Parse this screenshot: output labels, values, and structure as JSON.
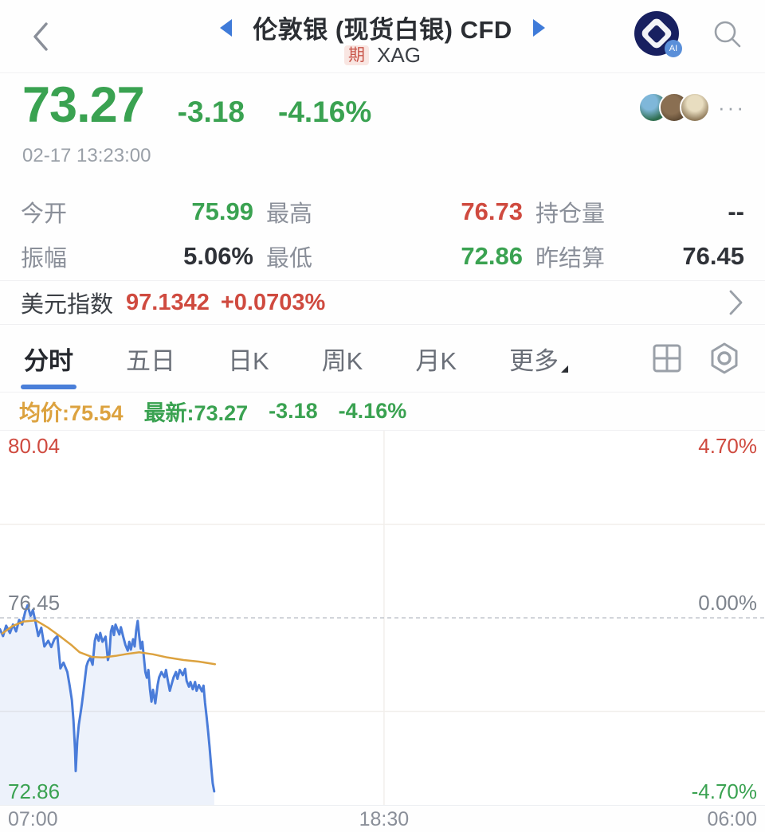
{
  "header": {
    "title": "伦敦银 (现货白银) CFD",
    "badge": "期",
    "symbol": "XAG"
  },
  "quote": {
    "price": "73.27",
    "change": "-3.18",
    "change_pct": "-4.16%",
    "timestamp": "02-17 13:23:00",
    "more": "···"
  },
  "stats": {
    "items": [
      {
        "label": "今开",
        "value": "75.99",
        "tone": "green"
      },
      {
        "label": "最高",
        "value": "76.73",
        "tone": "red"
      },
      {
        "label": "持仓量",
        "value": "--",
        "tone": "dark"
      },
      {
        "label": "振幅",
        "value": "5.06%",
        "tone": "dark"
      },
      {
        "label": "最低",
        "value": "72.86",
        "tone": "green"
      },
      {
        "label": "昨结算",
        "value": "76.45",
        "tone": "dark"
      }
    ]
  },
  "usd": {
    "label": "美元指数",
    "value": "97.1342",
    "change_pct": "+0.0703%"
  },
  "tabs": {
    "items": [
      "分时",
      "五日",
      "日K",
      "周K",
      "月K",
      "更多"
    ],
    "active_index": 0
  },
  "legend": {
    "avg": "均价:75.54",
    "latest": "最新:73.27",
    "change": "-3.18",
    "change_pct": "-4.16%"
  },
  "colors": {
    "green": "#3aa251",
    "red": "#cf4a3f",
    "orange": "#dca23f",
    "blue": "#4a7cd9",
    "accent_blue": "#3f7bd9"
  },
  "chart_data": {
    "type": "line",
    "x_labels": [
      "07:00",
      "18:30",
      "06:00"
    ],
    "y_left": [
      "80.04",
      "76.45",
      "72.86"
    ],
    "y_right": [
      "4.70%",
      "0.00%",
      "-4.70%"
    ],
    "ylim": [
      72.86,
      80.04
    ],
    "prev_close": 76.45,
    "avg_price": 75.54,
    "last_price": 73.27,
    "grid": {
      "color": "#f2efec",
      "dashed_color": "#b6bcc4",
      "h_solid_prices": [
        78.245,
        74.655
      ],
      "v_fracs": [
        0.502
      ]
    },
    "series": [
      {
        "name": "price",
        "color": "#4a7cd9",
        "fill": "rgba(74,124,217,0.10)",
        "points": [
          [
            0.0,
            76.23
          ],
          [
            0.004,
            76.1
          ],
          [
            0.008,
            76.3
          ],
          [
            0.013,
            76.16
          ],
          [
            0.017,
            76.32
          ],
          [
            0.021,
            76.19
          ],
          [
            0.025,
            76.41
          ],
          [
            0.029,
            76.32
          ],
          [
            0.033,
            76.57
          ],
          [
            0.036,
            76.69
          ],
          [
            0.04,
            76.49
          ],
          [
            0.043,
            76.6
          ],
          [
            0.047,
            76.33
          ],
          [
            0.05,
            76.1
          ],
          [
            0.054,
            76.26
          ],
          [
            0.058,
            75.9
          ],
          [
            0.063,
            76.01
          ],
          [
            0.067,
            75.89
          ],
          [
            0.071,
            76.04
          ],
          [
            0.075,
            76.1
          ],
          [
            0.079,
            75.48
          ],
          [
            0.083,
            75.59
          ],
          [
            0.088,
            75.41
          ],
          [
            0.091,
            75.15
          ],
          [
            0.094,
            74.87
          ],
          [
            0.096,
            74.48
          ],
          [
            0.098,
            73.94
          ],
          [
            0.099,
            73.51
          ],
          [
            0.101,
            74.1
          ],
          [
            0.103,
            74.4
          ],
          [
            0.105,
            74.59
          ],
          [
            0.107,
            74.79
          ],
          [
            0.109,
            75.02
          ],
          [
            0.113,
            75.52
          ],
          [
            0.115,
            75.61
          ],
          [
            0.118,
            75.68
          ],
          [
            0.121,
            75.55
          ],
          [
            0.124,
            76.01
          ],
          [
            0.126,
            76.13
          ],
          [
            0.129,
            76.01
          ],
          [
            0.131,
            76.16
          ],
          [
            0.134,
            75.99
          ],
          [
            0.138,
            76.09
          ],
          [
            0.141,
            75.64
          ],
          [
            0.143,
            75.75
          ],
          [
            0.145,
            76.19
          ],
          [
            0.147,
            76.29
          ],
          [
            0.149,
            76.12
          ],
          [
            0.151,
            76.32
          ],
          [
            0.154,
            76.21
          ],
          [
            0.156,
            76.13
          ],
          [
            0.158,
            76.27
          ],
          [
            0.161,
            76.09
          ],
          [
            0.164,
            75.93
          ],
          [
            0.167,
            75.82
          ],
          [
            0.169,
            75.99
          ],
          [
            0.171,
            75.84
          ],
          [
            0.174,
            76.04
          ],
          [
            0.176,
            75.9
          ],
          [
            0.178,
            76.21
          ],
          [
            0.18,
            76.39
          ],
          [
            0.182,
            76.1
          ],
          [
            0.184,
            75.86
          ],
          [
            0.186,
            75.99
          ],
          [
            0.19,
            75.41
          ],
          [
            0.192,
            75.3
          ],
          [
            0.194,
            75.45
          ],
          [
            0.196,
            75.08
          ],
          [
            0.198,
            74.84
          ],
          [
            0.2,
            75.07
          ],
          [
            0.203,
            74.81
          ],
          [
            0.206,
            75.16
          ],
          [
            0.208,
            75.31
          ],
          [
            0.211,
            75.41
          ],
          [
            0.215,
            75.31
          ],
          [
            0.217,
            75.45
          ],
          [
            0.219,
            75.28
          ],
          [
            0.222,
            75.05
          ],
          [
            0.225,
            75.21
          ],
          [
            0.227,
            75.31
          ],
          [
            0.23,
            75.41
          ],
          [
            0.232,
            75.28
          ],
          [
            0.235,
            75.45
          ],
          [
            0.239,
            75.35
          ],
          [
            0.242,
            75.47
          ],
          [
            0.244,
            75.24
          ],
          [
            0.247,
            75.13
          ],
          [
            0.249,
            75.22
          ],
          [
            0.252,
            75.08
          ],
          [
            0.255,
            75.22
          ],
          [
            0.257,
            75.05
          ],
          [
            0.26,
            75.16
          ],
          [
            0.264,
            75.04
          ],
          [
            0.266,
            75.15
          ],
          [
            0.268,
            74.82
          ],
          [
            0.27,
            74.56
          ],
          [
            0.272,
            74.28
          ],
          [
            0.274,
            73.97
          ],
          [
            0.276,
            73.6
          ],
          [
            0.278,
            73.28
          ],
          [
            0.28,
            73.12
          ]
        ]
      },
      {
        "name": "avg",
        "color": "#dca23f",
        "points": [
          [
            0.003,
            76.15
          ],
          [
            0.016,
            76.29
          ],
          [
            0.031,
            76.38
          ],
          [
            0.047,
            76.4
          ],
          [
            0.063,
            76.26
          ],
          [
            0.078,
            76.1
          ],
          [
            0.094,
            75.92
          ],
          [
            0.104,
            75.79
          ],
          [
            0.12,
            75.7
          ],
          [
            0.135,
            75.69
          ],
          [
            0.151,
            75.72
          ],
          [
            0.167,
            75.76
          ],
          [
            0.182,
            75.79
          ],
          [
            0.2,
            75.75
          ],
          [
            0.219,
            75.69
          ],
          [
            0.24,
            75.64
          ],
          [
            0.26,
            75.61
          ],
          [
            0.281,
            75.56
          ]
        ]
      }
    ]
  }
}
